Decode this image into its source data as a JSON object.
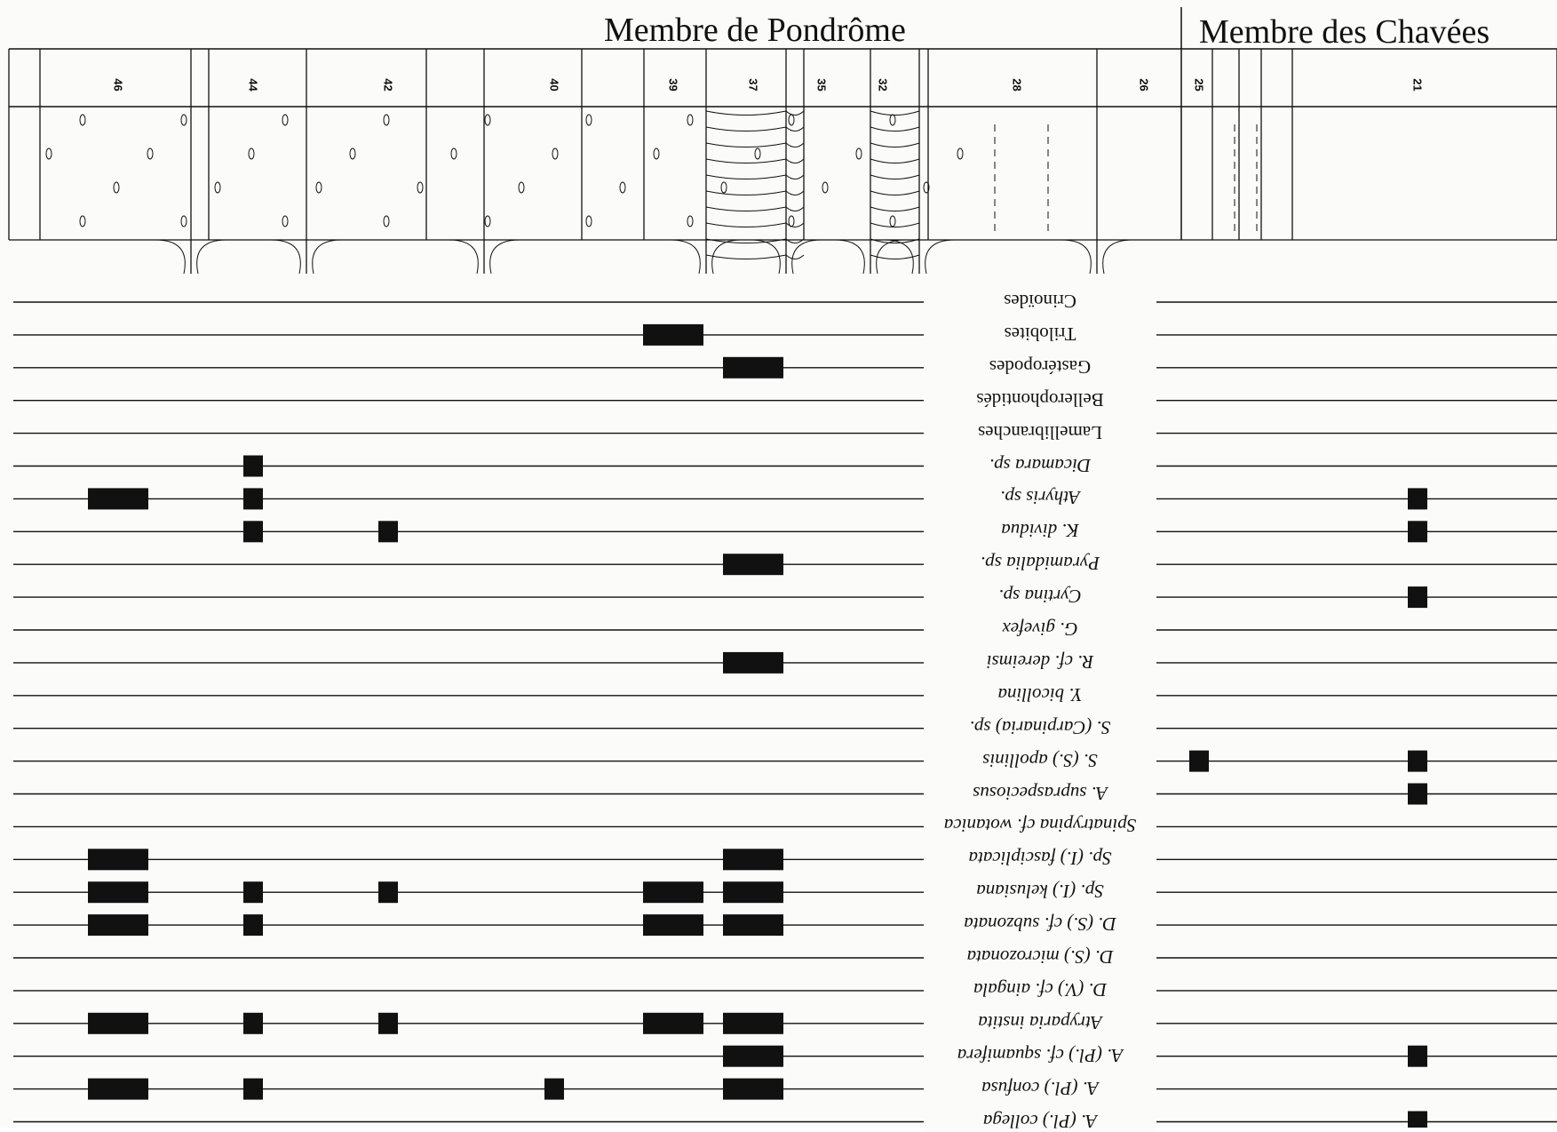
{
  "units": [
    {
      "name": "Membre de Pondrôme",
      "from_bed": "46",
      "to_bed": "26"
    },
    {
      "name": "Membre des Chavées",
      "from_bed": "25",
      "to_bed": "21"
    }
  ],
  "bed_labels": [
    "46",
    "44",
    "42",
    "40",
    "39",
    "37",
    "35",
    "32",
    "28",
    "26",
    "25",
    "21"
  ],
  "taxa": [
    {
      "name": "Crinoïdes",
      "italic": false
    },
    {
      "name": "Trilobites",
      "italic": false
    },
    {
      "name": "Gastéropodes",
      "italic": false
    },
    {
      "name": "Bellerophontidés",
      "italic": false
    },
    {
      "name": "Lamellibranches",
      "italic": false
    },
    {
      "name": "Dicamara sp.",
      "italic": true
    },
    {
      "name": "Athyris sp.",
      "italic": true
    },
    {
      "name": "K. dividua",
      "italic": true
    },
    {
      "name": "Pyramidalia sp.",
      "italic": true
    },
    {
      "name": "Cyrtina sp.",
      "italic": true
    },
    {
      "name": "G. givefex",
      "italic": true
    },
    {
      "name": "R. cf. dereimsi",
      "italic": true
    },
    {
      "name": "Y. bicollina",
      "italic": true
    },
    {
      "name": "S. (Carpinaria) sp.",
      "italic": true
    },
    {
      "name": "S. (S.) apollinis",
      "italic": true
    },
    {
      "name": "A. supraspeciosus",
      "italic": true
    },
    {
      "name": "Spinatrypina cf. wotanica",
      "italic": true
    },
    {
      "name": "Sp. (I.) fasciplicata",
      "italic": true
    },
    {
      "name": "Sp. (I.) kelusiana",
      "italic": true
    },
    {
      "name": "D. (S.) cf. subzonata",
      "italic": true
    },
    {
      "name": "D. (S.) microzonata",
      "italic": true
    },
    {
      "name": "D. (V.) cf. aingala",
      "italic": true
    },
    {
      "name": "Atryparia instita",
      "italic": true
    },
    {
      "name": "A. (Pl.) cf. squamifera",
      "italic": true
    },
    {
      "name": "A. (Pl.) confusa",
      "italic": true
    },
    {
      "name": "A. (Pl.) collega",
      "italic": true
    }
  ],
  "occurrences": {
    "Trilobites": [
      "39"
    ],
    "Gastéropodes": [
      "37"
    ],
    "Dicamara sp.": [
      "44"
    ],
    "Athyris sp.": [
      "46",
      "44",
      "21"
    ],
    "K. dividua": [
      "44",
      "42",
      "21"
    ],
    "Pyramidalia sp.": [
      "37"
    ],
    "Cyrtina sp.": [
      "21"
    ],
    "R. cf. dereimsi": [
      "37"
    ],
    "S. (S.) apollinis": [
      "25",
      "21"
    ],
    "A. supraspeciosus": [
      "21"
    ],
    "Sp. (I.) fasciplicata": [
      "46",
      "37"
    ],
    "Sp. (I.) kelusiana": [
      "46",
      "44",
      "42",
      "39",
      "37"
    ],
    "D. (S.) cf. subzonata": [
      "46",
      "44",
      "39",
      "37"
    ],
    "Atryparia instita": [
      "46",
      "44",
      "42",
      "39",
      "37"
    ],
    "A. (Pl.) cf. squamifera": [
      "37",
      "21"
    ],
    "A. (Pl.) confusa": [
      "46",
      "44",
      "40",
      "37"
    ],
    "A. (Pl.) collega": [
      "21"
    ]
  },
  "colors": {
    "ink": "#111111",
    "paper": "#fbfbf9"
  }
}
